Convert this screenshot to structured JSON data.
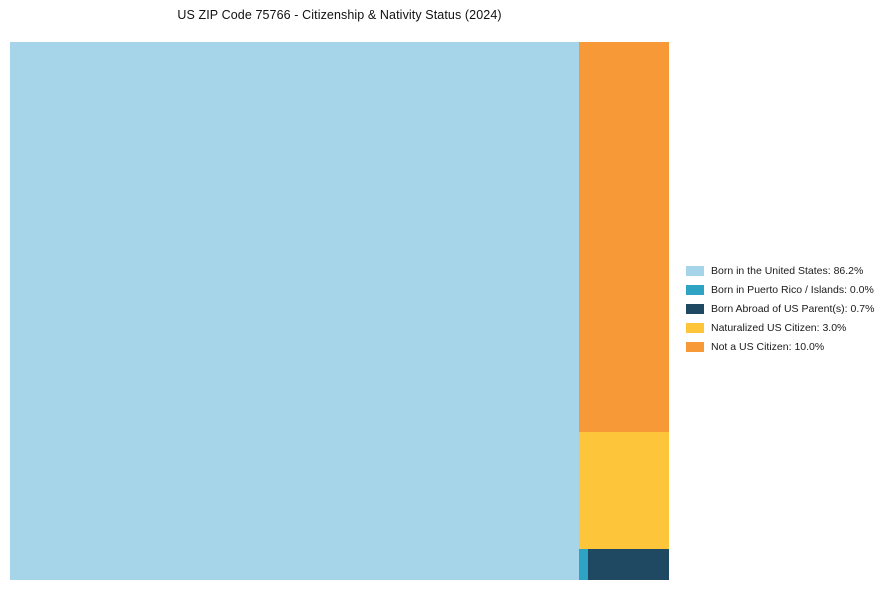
{
  "title": "US ZIP Code 75766 - Citizenship & Nativity Status (2024)",
  "chart_data": {
    "type": "treemap",
    "title": "US ZIP Code 75766 - Citizenship & Nativity Status (2024)",
    "categories": [
      "Born in the United States",
      "Born in Puerto Rico / Islands",
      "Born Abroad of US Parent(s)",
      "Naturalized US Citizen",
      "Not a US Citizen"
    ],
    "values": [
      86.2,
      0.0,
      0.7,
      3.0,
      10.0
    ],
    "unit": "%",
    "colors": [
      "#A6D4E8",
      "#2EA3C4",
      "#1F4863",
      "#FDC53A",
      "#F89938"
    ],
    "legend_position": "right",
    "legend_labels": [
      "Born in the United States: 86.2%",
      "Born in Puerto Rico / Islands: 0.0%",
      "Born Abroad of US Parent(s): 0.7%",
      "Naturalized US Citizen: 3.0%",
      "Not a US Citizen: 10.0%"
    ],
    "background": "#ffffff"
  }
}
